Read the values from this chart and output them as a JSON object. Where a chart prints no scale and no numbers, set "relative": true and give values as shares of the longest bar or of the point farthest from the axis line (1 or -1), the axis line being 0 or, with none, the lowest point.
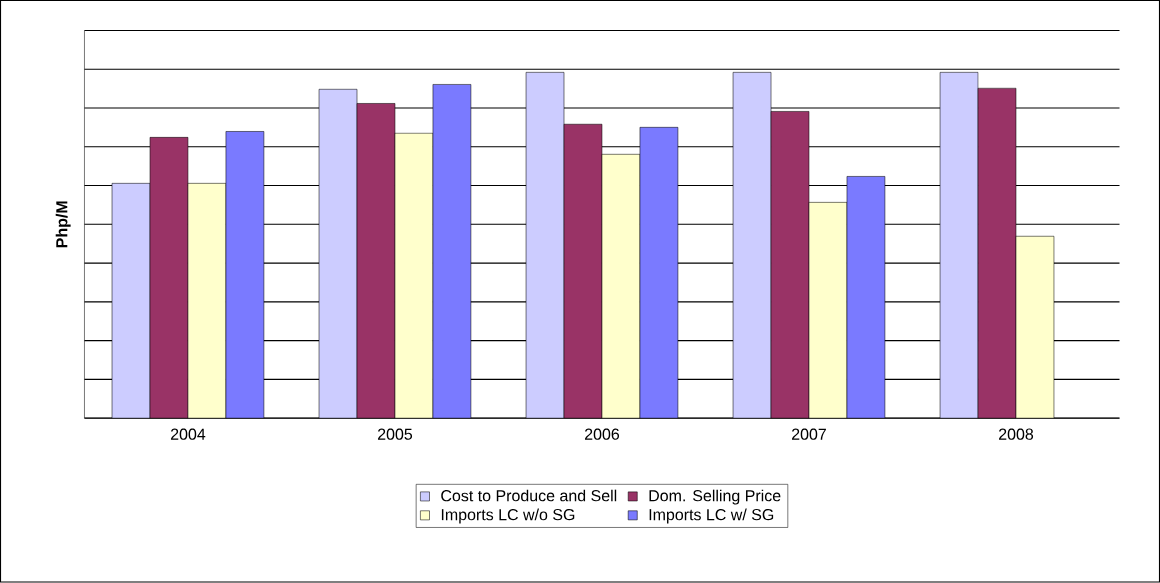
{
  "chart_data": {
    "type": "bar",
    "relative": true,
    "ylabel": "Php/M",
    "categories": [
      "2004",
      "2005",
      "2006",
      "2007",
      "2008"
    ],
    "series": [
      {
        "name": "Cost to Produce and Sell",
        "color": "#ccccff",
        "values": [
          0.679,
          0.951,
          1,
          1,
          1
        ]
      },
      {
        "name": "Dom. Selling Price",
        "color": "#993366",
        "values": [
          0.812,
          0.91,
          0.85,
          0.887,
          0.954
        ]
      },
      {
        "name": "Imports LC w/o SG",
        "color": "#ffffcc",
        "values": [
          0.679,
          0.824,
          0.763,
          0.624,
          0.526
        ]
      },
      {
        "name": "Imports LC w/ SG",
        "color": "#7a7aff",
        "values": [
          0.829,
          0.965,
          0.841,
          0.699,
          null
        ]
      }
    ],
    "grid": "y",
    "legend": "bottom"
  }
}
